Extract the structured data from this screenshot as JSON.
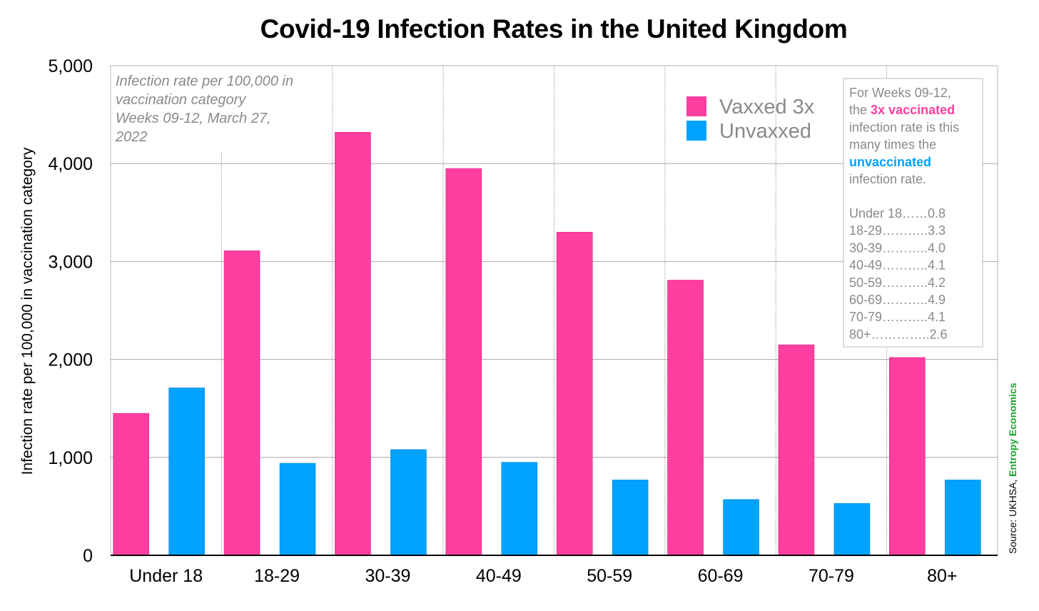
{
  "chart_data": {
    "type": "bar",
    "title": "Covid-19 Infection Rates in the United Kingdom",
    "ylabel": "Infection rate per 100,000 in vaccination category",
    "xlabel": "",
    "ylim": [
      0,
      5000
    ],
    "yticks": [
      "0",
      "1,000",
      "2,000",
      "3,000",
      "4,000",
      "5,000"
    ],
    "grid": true,
    "categories": [
      "Under 18",
      "18-29",
      "30-39",
      "40-49",
      "50-59",
      "60-69",
      "70-79",
      "80+"
    ],
    "series": [
      {
        "name": "Vaxxed 3x",
        "color": "#ff3fa0",
        "values": [
          1450,
          3110,
          4320,
          3950,
          3300,
          2810,
          2150,
          2020
        ]
      },
      {
        "name": "Unvaxxed",
        "color": "#00a2ff",
        "values": [
          1710,
          940,
          1080,
          950,
          770,
          570,
          530,
          770
        ]
      }
    ],
    "legend_position": "top-right",
    "annotation_lines": [
      "Infection rate per 100,000 in",
      "vaccination category",
      "Weeks 09-12, March 27,",
      "2022"
    ],
    "ratio_box": {
      "intro_lines": [
        [
          {
            "text": "For Weeks 09-12,",
            "style": "plain"
          }
        ],
        [
          {
            "text": "the ",
            "style": "plain"
          },
          {
            "text": "3x vaccinated",
            "style": "pink"
          }
        ],
        [
          {
            "text": "infection rate is this",
            "style": "plain"
          }
        ],
        [
          {
            "text": "many times the",
            "style": "plain"
          }
        ],
        [
          {
            "text": "unvaccinated",
            "style": "blue"
          }
        ],
        [
          {
            "text": "infection rate.",
            "style": "plain"
          }
        ]
      ],
      "ratio_lines": [
        "Under 18……0.8",
        "18-29………..3.3",
        "30-39………..4.0",
        "40-49………..4.1",
        "50-59………..4.2",
        "60-69………..4.9",
        "70-79………..4.1",
        "80+…………..2.6"
      ]
    },
    "source": {
      "prefix": "Source: UKHSA, ",
      "highlight": "Entropy Economics"
    }
  }
}
